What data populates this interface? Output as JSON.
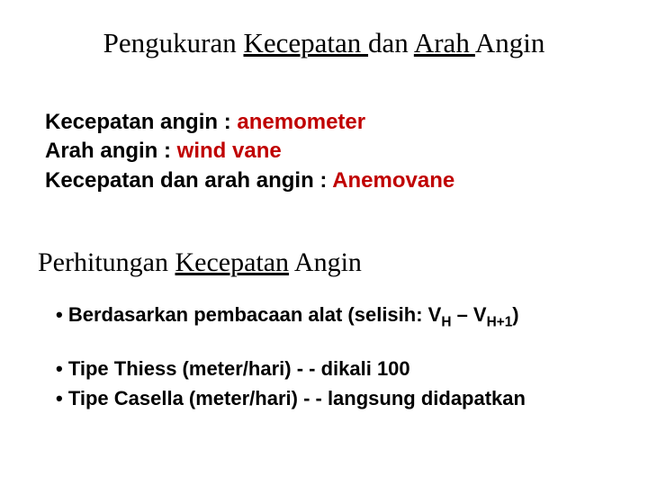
{
  "title": {
    "t1": "Pengukuran ",
    "t2": "Kecepatan ",
    "t3": "dan ",
    "t4": "Arah ",
    "t5": "Angin"
  },
  "defs": {
    "l1_label": "Kecepatan angin    : ",
    "l1_value": "anemometer",
    "l2_label": "Arah angin   : ",
    "l2_value": "wind vane",
    "l3_label": "Kecepatan dan arah angin : ",
    "l3_value": "Anemovane"
  },
  "subtitle": {
    "w1": "Perhitungan",
    "w2": "Kecepatan",
    "w3": "Angin"
  },
  "bullets": {
    "b1_a": "•  Berdasarkan pembacaan alat (selisih: V",
    "b1_s1": "H",
    "b1_b": " – V",
    "b1_s2": "H+1",
    "b1_c": ")",
    "b2": "•  Tipe Thiess (meter/hari) - - dikali 100",
    "b3": "•  Tipe Casella (meter/hari) - - langsung didapatkan"
  },
  "colors": {
    "text": "#000000",
    "red": "#c00000",
    "bg": "#ffffff"
  }
}
